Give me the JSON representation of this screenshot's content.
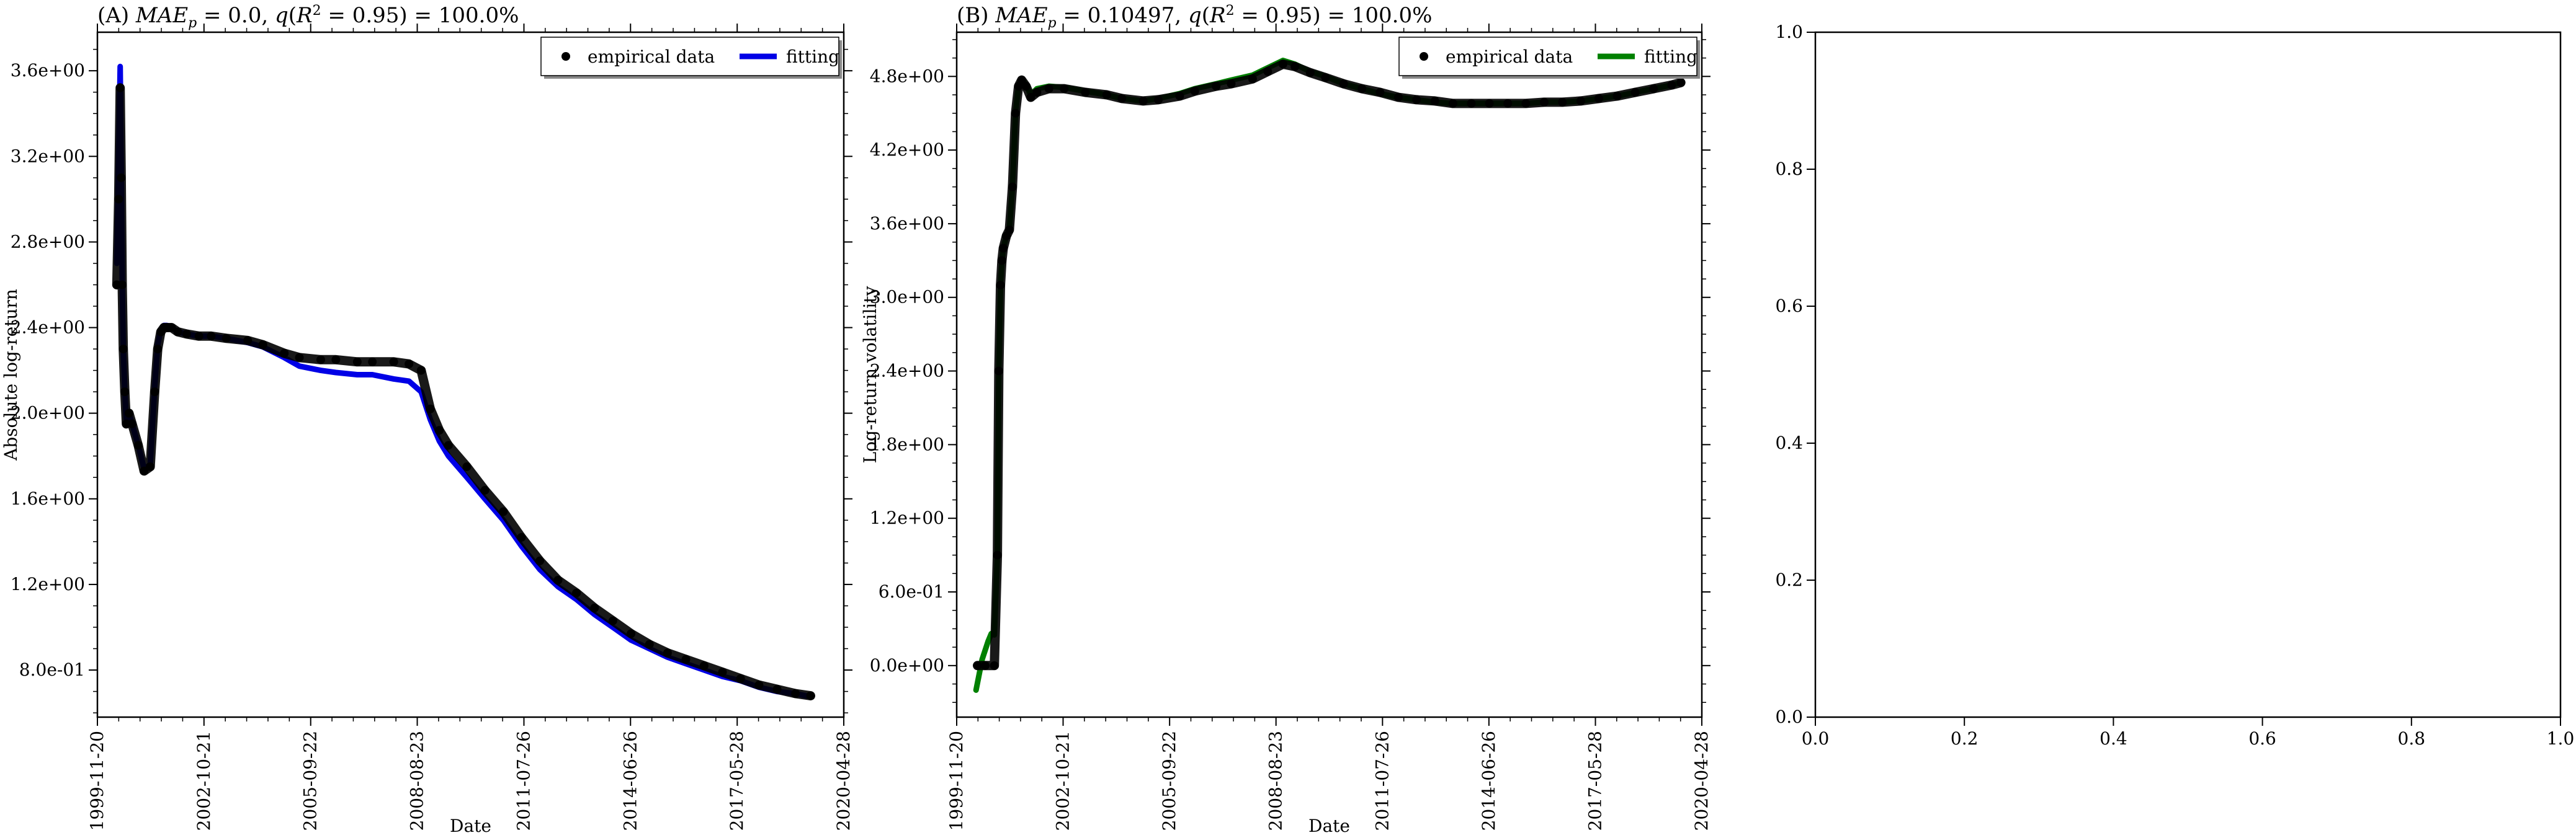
{
  "chart_data": [
    {
      "id": "A",
      "type": "line",
      "title": "(A) MAE_p = 0.0, q(R^2 = 0.95) = 100.0%",
      "title_parts": [
        "(A) ",
        "MAE",
        "p",
        " = 0.0, ",
        "q",
        "(",
        "R",
        "2",
        " = 0.95) = 100.0%"
      ],
      "xlabel": "Date",
      "ylabel": "Absolute log-return",
      "x_is_date": true,
      "xlim": [
        "1999-11-20",
        "2020-04-28"
      ],
      "ylim": [
        0.58,
        3.78
      ],
      "xticks": [
        "1999-11-20",
        "2002-10-21",
        "2005-09-22",
        "2008-08-23",
        "2011-07-26",
        "2014-06-26",
        "2017-05-28",
        "2020-04-28"
      ],
      "yticks": [
        0.8,
        1.2,
        1.6,
        2.0,
        2.4,
        2.8,
        3.2,
        3.6
      ],
      "ytick_labels": [
        "8.0e-01",
        "1.2e+00",
        "1.6e+00",
        "2.0e+00",
        "2.4e+00",
        "2.8e+00",
        "3.2e+00",
        "3.6e+00"
      ],
      "legend": {
        "position": "top-right",
        "entries": [
          "empirical data",
          "fitting"
        ]
      },
      "series": [
        {
          "name": "empirical data",
          "kind": "scatter",
          "color": "#000000",
          "x": [
            "2000-06-01",
            "2000-06-20",
            "2000-07-05",
            "2000-07-15",
            "2000-07-25",
            "2000-08-05",
            "2000-08-20",
            "2000-09-05",
            "2000-10-01",
            "2000-11-01",
            "2001-01-01",
            "2001-03-01",
            "2001-05-01",
            "2001-06-15",
            "2001-07-15",
            "2001-08-15",
            "2001-09-15",
            "2001-10-15",
            "2001-12-01",
            "2002-02-01",
            "2002-05-01",
            "2002-09-01",
            "2003-01-01",
            "2003-06-01",
            "2004-01-01",
            "2004-06-01",
            "2005-01-01",
            "2005-06-01",
            "2006-01-01",
            "2006-06-01",
            "2007-01-01",
            "2007-06-01",
            "2008-01-01",
            "2008-06-01",
            "2008-10-01",
            "2009-01-01",
            "2009-04-01",
            "2009-07-01",
            "2010-01-01",
            "2010-07-01",
            "2011-01-01",
            "2011-07-01",
            "2012-01-01",
            "2012-07-01",
            "2013-01-01",
            "2013-07-01",
            "2014-01-01",
            "2014-07-01",
            "2015-01-01",
            "2015-07-01",
            "2016-01-01",
            "2016-07-01",
            "2017-01-01",
            "2017-07-01",
            "2018-01-01",
            "2018-07-01",
            "2019-01-01",
            "2019-06-01"
          ],
          "y": [
            2.6,
            3.0,
            3.52,
            3.1,
            2.6,
            2.3,
            2.1,
            1.95,
            2.0,
            1.95,
            1.85,
            1.73,
            1.75,
            2.1,
            2.3,
            2.38,
            2.4,
            2.4,
            2.4,
            2.38,
            2.37,
            2.36,
            2.36,
            2.35,
            2.34,
            2.32,
            2.28,
            2.26,
            2.25,
            2.25,
            2.24,
            2.24,
            2.24,
            2.23,
            2.2,
            2.02,
            1.92,
            1.85,
            1.75,
            1.64,
            1.54,
            1.42,
            1.31,
            1.22,
            1.16,
            1.09,
            1.03,
            0.97,
            0.92,
            0.88,
            0.85,
            0.82,
            0.79,
            0.76,
            0.73,
            0.71,
            0.69,
            0.68
          ]
        },
        {
          "name": "fitting",
          "kind": "line",
          "color": "#0000e6",
          "x": [
            "2000-06-01",
            "2000-06-20",
            "2000-07-05",
            "2000-07-15",
            "2000-07-25",
            "2000-08-05",
            "2000-08-20",
            "2000-09-05",
            "2000-10-01",
            "2000-11-01",
            "2001-01-01",
            "2001-03-01",
            "2001-05-01",
            "2001-06-15",
            "2001-07-15",
            "2001-08-15",
            "2001-09-15",
            "2001-10-15",
            "2001-12-01",
            "2002-02-01",
            "2002-05-01",
            "2002-09-01",
            "2003-01-01",
            "2003-06-01",
            "2004-01-01",
            "2004-06-01",
            "2005-01-01",
            "2005-06-01",
            "2006-01-01",
            "2006-06-01",
            "2007-01-01",
            "2007-06-01",
            "2008-01-01",
            "2008-06-01",
            "2008-10-01",
            "2009-01-01",
            "2009-04-01",
            "2009-07-01",
            "2010-01-01",
            "2010-07-01",
            "2011-01-01",
            "2011-07-01",
            "2012-01-01",
            "2012-07-01",
            "2013-01-01",
            "2013-07-01",
            "2014-01-01",
            "2014-07-01",
            "2015-01-01",
            "2015-07-01",
            "2016-01-01",
            "2016-07-01",
            "2017-01-01",
            "2017-07-01",
            "2018-01-01",
            "2018-07-01",
            "2019-01-01",
            "2019-06-01"
          ],
          "y": [
            2.7,
            3.2,
            3.62,
            3.15,
            2.6,
            2.3,
            2.1,
            1.96,
            2.0,
            1.95,
            1.85,
            1.74,
            1.76,
            2.12,
            2.32,
            2.39,
            2.41,
            2.41,
            2.4,
            2.38,
            2.37,
            2.36,
            2.36,
            2.35,
            2.33,
            2.31,
            2.26,
            2.22,
            2.2,
            2.19,
            2.18,
            2.18,
            2.16,
            2.15,
            2.1,
            1.97,
            1.87,
            1.8,
            1.7,
            1.6,
            1.5,
            1.38,
            1.27,
            1.19,
            1.13,
            1.06,
            1.0,
            0.94,
            0.9,
            0.86,
            0.83,
            0.8,
            0.77,
            0.75,
            0.72,
            0.7,
            0.69,
            0.675
          ]
        }
      ]
    },
    {
      "id": "B",
      "type": "line",
      "title": "(B) MAE_p = 0.10497, q(R^2 = 0.95) = 100.0%",
      "title_parts": [
        "(B) ",
        "MAE",
        "p",
        " = 0.10497, ",
        "q",
        "(",
        "R",
        "2",
        " = 0.95) = 100.0%"
      ],
      "xlabel": "Date",
      "ylabel": "Log-return volatility",
      "x_is_date": true,
      "xlim": [
        "1999-11-20",
        "2020-04-28"
      ],
      "ylim": [
        -0.42,
        5.16
      ],
      "xticks": [
        "1999-11-20",
        "2002-10-21",
        "2005-09-22",
        "2008-08-23",
        "2011-07-26",
        "2014-06-26",
        "2017-05-28",
        "2020-04-28"
      ],
      "yticks": [
        0.0,
        0.6,
        1.2,
        1.8,
        2.4,
        3.0,
        3.6,
        4.2,
        4.8
      ],
      "ytick_labels": [
        "0.0e+00",
        "6.0e-01",
        "1.2e+00",
        "1.8e+00",
        "2.4e+00",
        "3.0e+00",
        "3.6e+00",
        "4.2e+00",
        "4.8e+00"
      ],
      "legend": {
        "position": "top-right",
        "entries": [
          "empirical data",
          "fitting"
        ]
      },
      "series": [
        {
          "name": "empirical data",
          "kind": "scatter",
          "color": "#000000",
          "x": [
            "2000-06-15",
            "2000-09-01",
            "2000-12-01",
            "2001-01-01",
            "2001-01-15",
            "2001-02-01",
            "2001-02-15",
            "2001-03-01",
            "2001-04-01",
            "2001-05-01",
            "2001-06-01",
            "2001-07-01",
            "2001-08-01",
            "2001-09-01",
            "2001-10-15",
            "2001-12-01",
            "2002-02-01",
            "2002-06-01",
            "2002-11-01",
            "2003-06-01",
            "2004-01-01",
            "2004-06-01",
            "2005-01-01",
            "2005-06-01",
            "2006-01-01",
            "2006-06-01",
            "2007-01-01",
            "2007-06-01",
            "2008-01-01",
            "2008-06-01",
            "2008-11-01",
            "2009-03-01",
            "2009-08-01",
            "2010-01-01",
            "2010-07-01",
            "2011-01-01",
            "2011-07-01",
            "2012-01-01",
            "2012-07-01",
            "2013-01-01",
            "2013-07-01",
            "2014-01-01",
            "2014-07-01",
            "2015-01-01",
            "2015-07-01",
            "2016-01-01",
            "2016-07-01",
            "2017-01-01",
            "2017-07-01",
            "2018-01-01",
            "2018-07-01",
            "2019-01-01",
            "2019-07-01",
            "2019-10-01"
          ],
          "y": [
            0.0,
            0.0,
            0.0,
            0.9,
            2.4,
            3.1,
            3.3,
            3.4,
            3.5,
            3.55,
            3.9,
            4.5,
            4.72,
            4.77,
            4.72,
            4.63,
            4.67,
            4.7,
            4.7,
            4.67,
            4.65,
            4.62,
            4.6,
            4.61,
            4.64,
            4.68,
            4.72,
            4.74,
            4.78,
            4.84,
            4.9,
            4.88,
            4.83,
            4.79,
            4.74,
            4.7,
            4.67,
            4.63,
            4.61,
            4.6,
            4.58,
            4.58,
            4.58,
            4.58,
            4.58,
            4.59,
            4.59,
            4.6,
            4.62,
            4.64,
            4.67,
            4.7,
            4.73,
            4.75
          ]
        },
        {
          "name": "fitting",
          "kind": "line",
          "color": "#008000",
          "x": [
            "2000-06-01",
            "2000-08-01",
            "2000-10-01",
            "2000-11-01",
            "2000-12-01",
            "2001-01-01",
            "2001-01-15",
            "2001-02-01",
            "2001-02-15",
            "2001-03-01",
            "2001-04-01",
            "2001-05-01",
            "2001-06-01",
            "2001-07-01",
            "2001-08-01",
            "2001-09-01",
            "2001-10-15",
            "2001-12-01",
            "2002-02-01",
            "2002-06-01",
            "2002-11-01",
            "2003-06-01",
            "2004-01-01",
            "2004-06-01",
            "2005-01-01",
            "2005-06-01",
            "2006-01-01",
            "2006-06-01",
            "2007-01-01",
            "2007-06-01",
            "2008-01-01",
            "2008-06-01",
            "2008-11-01",
            "2009-03-01",
            "2009-08-01",
            "2010-01-01",
            "2010-07-01",
            "2011-01-01",
            "2011-07-01",
            "2012-01-01",
            "2012-07-01",
            "2013-01-01",
            "2013-07-01",
            "2014-01-01",
            "2014-07-01",
            "2015-01-01",
            "2015-07-01",
            "2016-01-01",
            "2016-07-01",
            "2017-01-01",
            "2017-07-01",
            "2018-01-01",
            "2018-07-01",
            "2019-01-01",
            "2019-07-01",
            "2019-10-01"
          ],
          "y": [
            -0.2,
            0.05,
            0.2,
            0.26,
            0.25,
            0.9,
            2.4,
            3.1,
            3.3,
            3.4,
            3.5,
            3.55,
            3.9,
            4.5,
            4.73,
            4.78,
            4.73,
            4.65,
            4.7,
            4.72,
            4.71,
            4.68,
            4.65,
            4.62,
            4.6,
            4.62,
            4.66,
            4.7,
            4.74,
            4.77,
            4.81,
            4.87,
            4.93,
            4.9,
            4.84,
            4.8,
            4.74,
            4.7,
            4.66,
            4.63,
            4.61,
            4.59,
            4.58,
            4.58,
            4.58,
            4.58,
            4.58,
            4.59,
            4.59,
            4.6,
            4.62,
            4.64,
            4.67,
            4.7,
            4.73,
            4.75
          ]
        }
      ]
    },
    {
      "id": "C",
      "type": "line",
      "title": "",
      "xlabel": "",
      "ylabel": "",
      "x_is_date": false,
      "xlim": [
        0,
        1
      ],
      "ylim": [
        0,
        1
      ],
      "xticks": [
        0.0,
        0.2,
        0.4,
        0.6,
        0.8,
        1.0
      ],
      "xtick_labels": [
        "0.0",
        "0.2",
        "0.4",
        "0.6",
        "0.8",
        "1.0"
      ],
      "yticks": [
        0.0,
        0.2,
        0.4,
        0.6,
        0.8,
        1.0
      ],
      "ytick_labels": [
        "0.0",
        "0.2",
        "0.4",
        "0.6",
        "0.8",
        "1.0"
      ],
      "series": []
    }
  ]
}
